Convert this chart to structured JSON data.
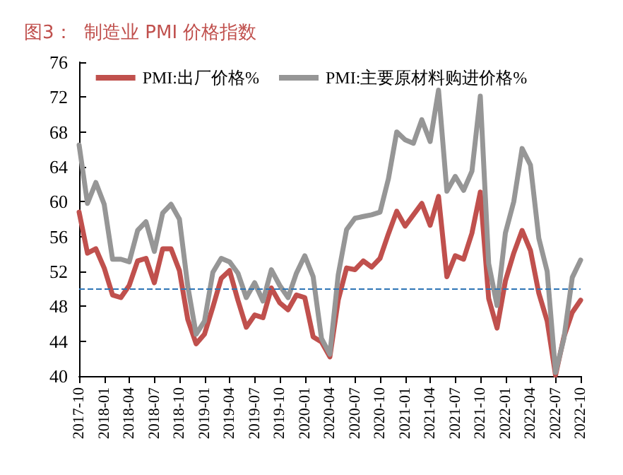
{
  "chart_data": {
    "type": "line",
    "title": "图3：  制造业 PMI 价格指数",
    "categories": [
      "2017-10",
      null,
      null,
      "2018-01",
      null,
      null,
      "2018-04",
      null,
      null,
      "2018-07",
      null,
      null,
      "2018-10",
      null,
      null,
      "2019-01",
      null,
      null,
      "2019-04",
      null,
      null,
      "2019-07",
      null,
      null,
      "2019-10",
      null,
      null,
      "2020-01",
      null,
      null,
      "2020-04",
      null,
      null,
      "2020-07",
      null,
      null,
      "2020-10",
      null,
      null,
      "2021-01",
      null,
      null,
      "2021-04",
      null,
      null,
      "2021-07",
      null,
      null,
      "2021-10",
      null,
      null,
      "2022-01",
      null,
      null,
      "2022-04",
      null,
      null,
      "2022-07",
      null,
      null,
      "2022-10"
    ],
    "series": [
      {
        "name": "PMI:出厂价格%",
        "color": "#c0504d",
        "values": [
          58.8,
          54.1,
          54.6,
          52.4,
          49.3,
          49.0,
          50.4,
          53.2,
          53.5,
          50.7,
          54.6,
          54.6,
          52.1,
          46.5,
          43.7,
          44.8,
          47.9,
          51.2,
          52.1,
          48.7,
          45.6,
          47.0,
          46.7,
          50.1,
          48.4,
          47.6,
          49.3,
          49.0,
          44.5,
          43.9,
          42.2,
          48.7,
          52.4,
          52.2,
          53.2,
          52.5,
          53.5,
          56.3,
          58.9,
          57.2,
          58.5,
          59.8,
          57.3,
          60.6,
          51.4,
          53.8,
          53.4,
          56.4,
          61.1,
          48.9,
          45.5,
          50.9,
          54.1,
          56.7,
          54.4,
          49.5,
          46.3,
          40.1,
          44.5,
          47.3,
          48.7
        ]
      },
      {
        "name": "PMI:主要原材料购进价格%",
        "color": "#969696",
        "values": [
          66.5,
          59.8,
          62.2,
          59.7,
          53.4,
          53.4,
          53.1,
          56.7,
          57.7,
          54.3,
          58.7,
          59.7,
          58.0,
          50.3,
          44.8,
          46.3,
          51.9,
          53.5,
          53.1,
          51.8,
          49.0,
          50.7,
          48.6,
          52.2,
          50.4,
          49.0,
          51.8,
          53.8,
          51.4,
          44.3,
          42.5,
          51.6,
          56.8,
          58.1,
          58.3,
          58.5,
          58.8,
          62.6,
          68.0,
          67.1,
          66.7,
          69.4,
          66.9,
          72.8,
          61.2,
          62.9,
          61.3,
          63.5,
          72.1,
          52.9,
          48.1,
          56.4,
          60.0,
          66.1,
          64.2,
          55.8,
          52.0,
          40.4,
          44.3,
          51.3,
          53.3
        ]
      }
    ],
    "ylim": [
      40,
      76
    ],
    "yticks": [
      40,
      44,
      48,
      52,
      56,
      60,
      64,
      68,
      72,
      76
    ],
    "ref_lines": [
      {
        "axis": "y",
        "value": 50,
        "color": "#2e75b6",
        "line_style": "dashed"
      }
    ],
    "grid": false,
    "legend": "top",
    "marker": "none",
    "line_style": "solid"
  }
}
